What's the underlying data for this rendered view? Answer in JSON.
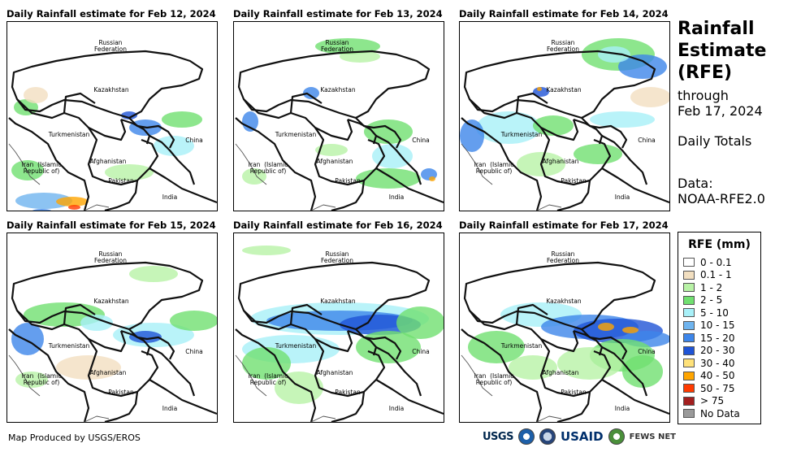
{
  "panels": [
    {
      "title": "Daily Rainfall estimate for Feb 12, 2024"
    },
    {
      "title": "Daily Rainfall estimate for Feb 13, 2024"
    },
    {
      "title": "Daily Rainfall estimate for Feb 14, 2024"
    },
    {
      "title": "Daily Rainfall estimate for Feb 15, 2024"
    },
    {
      "title": "Daily Rainfall estimate for Feb 16, 2024"
    },
    {
      "title": "Daily Rainfall estimate for Feb 17, 2024"
    }
  ],
  "map_labels": {
    "russia": "Russian\nFederation",
    "kazakhstan": "Kazakhstan",
    "turkmenistan": "Turkmenistan",
    "china": "China",
    "iran": "Iran  (Islamic\nRepublic of)",
    "afghanistan": "Afghanistan",
    "pakistan": "Pakistan",
    "india": "India"
  },
  "side": {
    "title_line1": "Rainfall",
    "title_line2": "Estimate",
    "title_line3": "(RFE)",
    "through": "through",
    "date": "Feb 17, 2024",
    "totals": "Daily Totals",
    "data_label": "Data:",
    "data_source": "NOAA-RFE2.0"
  },
  "legend": {
    "title": "RFE (mm)",
    "items": [
      {
        "label": "0 - 0.1",
        "color": "#ffffff"
      },
      {
        "label": "0.1 - 1",
        "color": "#f2dfc0"
      },
      {
        "label": "1 - 2",
        "color": "#b8f2a6"
      },
      {
        "label": "2 - 5",
        "color": "#70e070"
      },
      {
        "label": "5 - 10",
        "color": "#a8f0f8"
      },
      {
        "label": "10 - 15",
        "color": "#6fb4ef"
      },
      {
        "label": "15 - 20",
        "color": "#3d86ea"
      },
      {
        "label": "20 - 30",
        "color": "#1f54d6"
      },
      {
        "label": "30 - 40",
        "color": "#ffe27a"
      },
      {
        "label": "40 - 50",
        "color": "#ffa500"
      },
      {
        "label": "50 - 75",
        "color": "#ff3b00"
      },
      {
        "label": "> 75",
        "color": "#a31f1f"
      },
      {
        "label": "No Data",
        "color": "#9a9a9a"
      }
    ]
  },
  "footer": {
    "credit": "Map Produced by USGS/EROS",
    "logo_usgs": "USGS",
    "logo_usaid": "USAID",
    "logo_fews": "FEWS NET"
  }
}
